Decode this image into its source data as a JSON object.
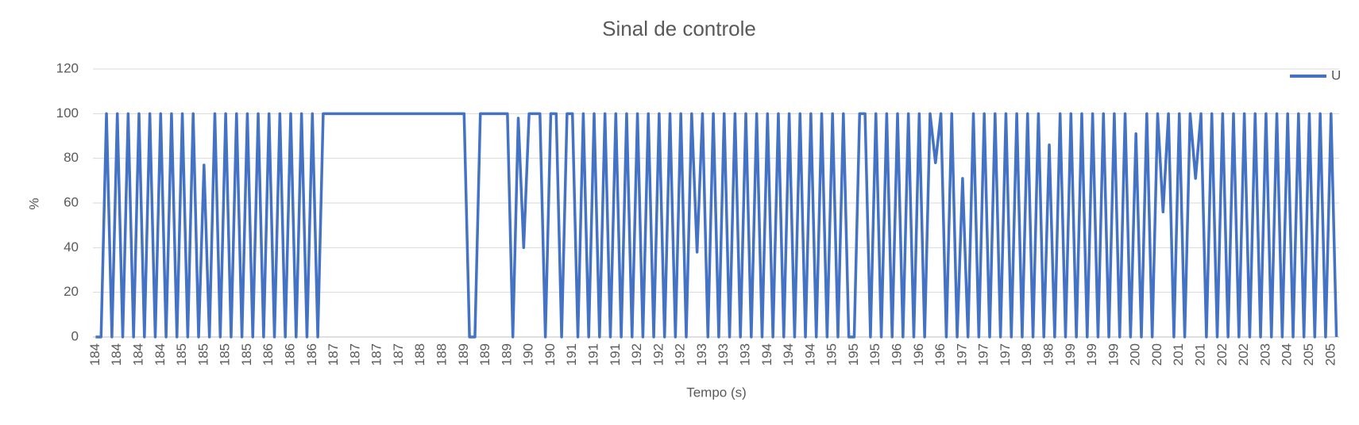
{
  "chart_data": {
    "type": "line",
    "title": "Sinal de controle",
    "x_label": "Tempo (s)",
    "y_label": "%",
    "categories": [
      "184",
      null,
      null,
      null,
      "184",
      null,
      null,
      null,
      "184",
      null,
      null,
      null,
      "184",
      null,
      null,
      null,
      "185",
      null,
      null,
      null,
      "185",
      null,
      null,
      null,
      "185",
      null,
      null,
      null,
      "185",
      null,
      null,
      null,
      "186",
      null,
      null,
      null,
      "186",
      null,
      null,
      null,
      "186",
      null,
      null,
      null,
      "187",
      null,
      null,
      null,
      "187",
      null,
      null,
      null,
      "187",
      null,
      null,
      null,
      "187",
      null,
      null,
      null,
      "188",
      null,
      null,
      null,
      "188",
      null,
      null,
      null,
      "189",
      null,
      null,
      null,
      "189",
      null,
      null,
      null,
      "189",
      null,
      null,
      null,
      "190",
      null,
      null,
      null,
      "190",
      null,
      null,
      null,
      "191",
      null,
      null,
      null,
      "191",
      null,
      null,
      null,
      "191",
      null,
      null,
      null,
      "192",
      null,
      null,
      null,
      "192",
      null,
      null,
      null,
      "192",
      null,
      null,
      null,
      "193",
      null,
      null,
      null,
      "193",
      null,
      null,
      null,
      "193",
      null,
      null,
      null,
      "194",
      null,
      null,
      null,
      "194",
      null,
      null,
      null,
      "194",
      null,
      null,
      null,
      "195",
      null,
      null,
      null,
      "195",
      null,
      null,
      null,
      "195",
      null,
      null,
      null,
      "196",
      null,
      null,
      null,
      "196",
      null,
      null,
      null,
      "196",
      null,
      null,
      null,
      "197",
      null,
      null,
      null,
      "197",
      null,
      null,
      null,
      "197",
      null,
      null,
      null,
      "198",
      null,
      null,
      null,
      "198",
      null,
      null,
      null,
      "199",
      null,
      null,
      null,
      "199",
      null,
      null,
      null,
      "199",
      null,
      null,
      null,
      "200",
      null,
      null,
      null,
      "200",
      null,
      null,
      null,
      "201",
      null,
      null,
      null,
      "201",
      null,
      null,
      null,
      "202",
      null,
      null,
      null,
      "202",
      null,
      null,
      null,
      "203",
      null,
      null,
      null,
      "204",
      null,
      null,
      null,
      "205",
      null,
      null,
      null,
      "205",
      null
    ],
    "series": [
      {
        "name": "U",
        "color": "#4472c4",
        "values": [
          0,
          0,
          100,
          0,
          100,
          0,
          100,
          0,
          100,
          0,
          100,
          0,
          100,
          0,
          100,
          0,
          100,
          0,
          100,
          0,
          77,
          0,
          100,
          0,
          100,
          0,
          100,
          0,
          100,
          0,
          100,
          0,
          100,
          0,
          100,
          0,
          100,
          0,
          100,
          0,
          100,
          0,
          100,
          100,
          100,
          100,
          100,
          100,
          100,
          100,
          100,
          100,
          100,
          100,
          100,
          100,
          100,
          100,
          100,
          100,
          100,
          100,
          100,
          100,
          100,
          100,
          100,
          100,
          100,
          0,
          0,
          100,
          100,
          100,
          100,
          100,
          100,
          0,
          98,
          40,
          100,
          100,
          100,
          0,
          100,
          100,
          0,
          100,
          100,
          0,
          100,
          0,
          100,
          0,
          100,
          0,
          100,
          0,
          100,
          0,
          100,
          0,
          100,
          0,
          100,
          0,
          100,
          0,
          100,
          0,
          100,
          38,
          100,
          0,
          100,
          0,
          100,
          0,
          100,
          0,
          100,
          0,
          100,
          0,
          100,
          0,
          100,
          0,
          100,
          0,
          100,
          0,
          100,
          0,
          100,
          0,
          100,
          0,
          100,
          0,
          0,
          100,
          100,
          0,
          100,
          0,
          100,
          0,
          100,
          0,
          100,
          0,
          100,
          0,
          100,
          78,
          100,
          0,
          100,
          0,
          71,
          0,
          100,
          0,
          100,
          0,
          100,
          0,
          100,
          0,
          100,
          0,
          100,
          0,
          100,
          0,
          86,
          0,
          100,
          0,
          100,
          0,
          100,
          0,
          100,
          0,
          100,
          0,
          100,
          0,
          100,
          0,
          91,
          0,
          100,
          0,
          100,
          56,
          100,
          0,
          100,
          0,
          100,
          71,
          100,
          0,
          100,
          0,
          100,
          0,
          100,
          0,
          100,
          0,
          100,
          0,
          100,
          0,
          100,
          0,
          100,
          0,
          100,
          0,
          100,
          0,
          100,
          0,
          100,
          0
        ]
      }
    ],
    "ylim": [
      0,
      120
    ],
    "yticks": [
      0,
      20,
      40,
      60,
      80,
      100,
      120
    ],
    "grid": true,
    "legend": "top-right"
  }
}
